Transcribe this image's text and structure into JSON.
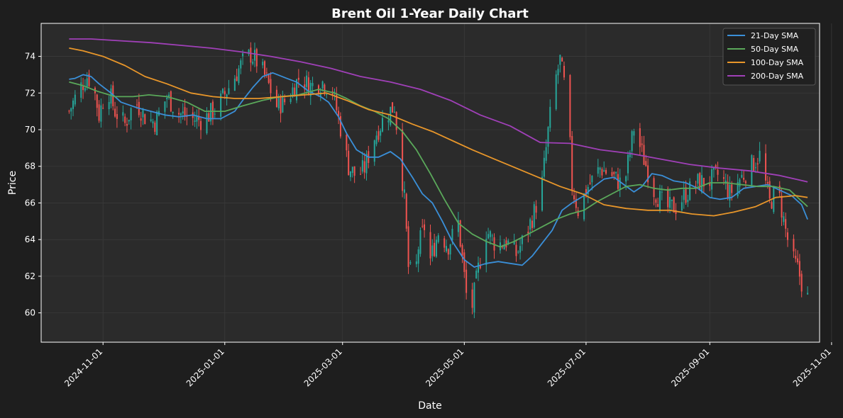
{
  "colors": {
    "figure_bg": "#1e1e1e",
    "axes_bg": "#2b2b2b",
    "grid": "#3a3a3a",
    "up": "#26a69a",
    "down": "#ef5350",
    "sma21": "#3a8fd8",
    "sma50": "#5aa85a",
    "sma100": "#e8962a",
    "sma200": "#a040b8"
  },
  "chart_data": {
    "type": "line",
    "title": "Brent Oil 1-Year Daily Chart",
    "xlabel": "Date",
    "ylabel": "Price",
    "xlim": [
      "2024-10-01",
      "2025-10-26"
    ],
    "ylim": [
      58.4,
      75.8
    ],
    "grid": true,
    "legend_position": "top-right",
    "x_ticks": [
      "2024-11-01",
      "2025-01-01",
      "2025-03-01",
      "2025-05-01",
      "2025-07-01",
      "2025-09-01",
      "2025-11-01"
    ],
    "y_ticks": [
      60,
      62,
      64,
      66,
      68,
      70,
      72,
      74
    ],
    "close_points": {
      "x": [
        "2024-10-15",
        "2024-10-20",
        "2024-10-24",
        "2024-10-27",
        "2024-10-30",
        "2024-11-03",
        "2024-11-07",
        "2024-11-12",
        "2024-11-17",
        "2024-11-22",
        "2024-11-27",
        "2024-12-03",
        "2024-12-09",
        "2024-12-15",
        "2024-12-21",
        "2024-12-28",
        "2025-01-04",
        "2025-01-10",
        "2025-01-14",
        "2025-01-18",
        "2025-01-22",
        "2025-01-27",
        "2025-02-01",
        "2025-02-07",
        "2025-02-13",
        "2025-02-19",
        "2025-02-24",
        "2025-03-01",
        "2025-03-04",
        "2025-03-08",
        "2025-03-12",
        "2025-03-17",
        "2025-03-22",
        "2025-03-27",
        "2025-04-01",
        "2025-04-03",
        "2025-04-06",
        "2025-04-08",
        "2025-04-11",
        "2025-04-14",
        "2025-04-18",
        "2025-04-23",
        "2025-04-28",
        "2025-05-02",
        "2025-05-05",
        "2025-05-08",
        "2025-05-12",
        "2025-05-17",
        "2025-05-22",
        "2025-05-27",
        "2025-06-01",
        "2025-06-05",
        "2025-06-09",
        "2025-06-12",
        "2025-06-15",
        "2025-06-18",
        "2025-06-22",
        "2025-06-24",
        "2025-06-27",
        "2025-07-02",
        "2025-07-08",
        "2025-07-14",
        "2025-07-20",
        "2025-07-25",
        "2025-07-30",
        "2025-08-04",
        "2025-08-10",
        "2025-08-15",
        "2025-08-20",
        "2025-08-26",
        "2025-09-01",
        "2025-09-06",
        "2025-09-11",
        "2025-09-16",
        "2025-09-21",
        "2025-09-26",
        "2025-10-01",
        "2025-10-05",
        "2025-10-09",
        "2025-10-12",
        "2025-10-15",
        "2025-10-18",
        "2025-10-20"
      ],
      "y": [
        71.0,
        72.2,
        72.9,
        72.5,
        70.8,
        72.4,
        71.0,
        70.3,
        71.6,
        70.7,
        70.4,
        71.8,
        70.9,
        70.6,
        70.5,
        71.2,
        72.5,
        73.7,
        74.1,
        73.6,
        72.7,
        71.3,
        71.6,
        72.8,
        72.4,
        72.6,
        72.1,
        69.6,
        68.0,
        67.4,
        67.9,
        69.6,
        70.7,
        71.3,
        66.2,
        62.5,
        61.6,
        63.6,
        64.7,
        62.9,
        64.4,
        63.7,
        64.9,
        61.0,
        60.4,
        62.4,
        64.5,
        63.7,
        63.9,
        63.2,
        64.3,
        65.5,
        67.1,
        69.9,
        72.4,
        73.8,
        71.2,
        66.9,
        65.6,
        66.9,
        67.9,
        67.5,
        66.9,
        70.1,
        68.4,
        66.7,
        65.7,
        65.8,
        66.5,
        67.1,
        67.2,
        67.6,
        66.5,
        67.3,
        67.9,
        68.6,
        66.0,
        66.8,
        64.5,
        63.0,
        62.4,
        61.3,
        60.8
      ]
    },
    "series": [
      {
        "name": "21-Day SMA",
        "x": [
          "2024-10-15",
          "2024-10-18",
          "2024-10-22",
          "2024-10-26",
          "2024-10-30",
          "2024-11-05",
          "2024-11-10",
          "2024-11-18",
          "2024-11-25",
          "2024-12-02",
          "2024-12-09",
          "2024-12-16",
          "2024-12-23",
          "2024-12-30",
          "2025-01-06",
          "2025-01-10",
          "2025-01-15",
          "2025-01-20",
          "2025-01-25",
          "2025-02-01",
          "2025-02-06",
          "2025-02-12",
          "2025-02-18",
          "2025-02-22",
          "2025-02-27",
          "2025-03-03",
          "2025-03-08",
          "2025-03-14",
          "2025-03-19",
          "2025-03-25",
          "2025-03-30",
          "2025-04-05",
          "2025-04-10",
          "2025-04-15",
          "2025-04-20",
          "2025-04-25",
          "2025-05-01",
          "2025-05-06",
          "2025-05-12",
          "2025-05-18",
          "2025-05-24",
          "2025-05-30",
          "2025-06-04",
          "2025-06-09",
          "2025-06-14",
          "2025-06-19",
          "2025-06-24",
          "2025-06-30",
          "2025-07-05",
          "2025-07-10",
          "2025-07-15",
          "2025-07-20",
          "2025-07-25",
          "2025-07-29",
          "2025-08-03",
          "2025-08-08",
          "2025-08-14",
          "2025-08-20",
          "2025-08-26",
          "2025-09-01",
          "2025-09-06",
          "2025-09-12",
          "2025-09-18",
          "2025-09-24",
          "2025-09-30",
          "2025-10-06",
          "2025-10-12",
          "2025-10-17",
          "2025-10-20"
        ],
        "values": [
          72.75,
          72.8,
          73.0,
          72.9,
          72.5,
          72.0,
          71.5,
          71.2,
          71.0,
          70.8,
          70.7,
          70.8,
          70.6,
          70.6,
          71.0,
          71.6,
          72.3,
          72.9,
          73.1,
          72.8,
          72.6,
          72.1,
          71.8,
          71.5,
          70.7,
          69.8,
          68.9,
          68.5,
          68.5,
          68.8,
          68.4,
          67.4,
          66.5,
          66.0,
          65.0,
          63.9,
          62.9,
          62.5,
          62.7,
          62.8,
          62.7,
          62.6,
          63.1,
          63.8,
          64.5,
          65.6,
          66.0,
          66.4,
          66.9,
          67.3,
          67.4,
          67.0,
          66.6,
          66.9,
          67.6,
          67.5,
          67.2,
          67.1,
          66.8,
          66.3,
          66.2,
          66.3,
          66.8,
          66.9,
          67.0,
          66.7,
          66.4,
          65.9,
          65.1
        ]
      },
      {
        "name": "50-Day SMA",
        "x": [
          "2024-10-15",
          "2024-10-22",
          "2024-10-29",
          "2024-11-07",
          "2024-11-16",
          "2024-11-24",
          "2024-12-03",
          "2024-12-13",
          "2024-12-22",
          "2025-01-01",
          "2025-01-10",
          "2025-01-20",
          "2025-01-29",
          "2025-02-07",
          "2025-02-17",
          "2025-02-25",
          "2025-03-03",
          "2025-03-10",
          "2025-03-17",
          "2025-03-24",
          "2025-03-31",
          "2025-04-07",
          "2025-04-14",
          "2025-04-21",
          "2025-04-28",
          "2025-05-05",
          "2025-05-12",
          "2025-05-19",
          "2025-05-26",
          "2025-06-02",
          "2025-06-09",
          "2025-06-16",
          "2025-06-23",
          "2025-06-30",
          "2025-07-07",
          "2025-07-14",
          "2025-07-21",
          "2025-07-28",
          "2025-08-04",
          "2025-08-11",
          "2025-08-18",
          "2025-08-25",
          "2025-09-01",
          "2025-09-09",
          "2025-09-17",
          "2025-09-25",
          "2025-10-03",
          "2025-10-11",
          "2025-10-17",
          "2025-10-20"
        ],
        "values": [
          72.6,
          72.4,
          72.1,
          71.8,
          71.8,
          71.9,
          71.8,
          71.5,
          71.0,
          71.0,
          71.3,
          71.6,
          71.8,
          71.9,
          72.2,
          72.0,
          71.7,
          71.3,
          71.0,
          70.6,
          69.9,
          68.9,
          67.6,
          66.2,
          64.9,
          64.3,
          63.9,
          63.6,
          63.9,
          64.3,
          64.7,
          65.1,
          65.4,
          65.6,
          66.1,
          66.5,
          66.9,
          67.0,
          66.8,
          66.7,
          66.8,
          66.8,
          67.1,
          67.1,
          67.0,
          66.9,
          66.9,
          66.7,
          66.1,
          65.8
        ]
      },
      {
        "name": "100-Day SMA",
        "x": [
          "2024-10-15",
          "2024-10-22",
          "2024-11-01",
          "2024-11-12",
          "2024-11-22",
          "2024-12-03",
          "2024-12-15",
          "2024-12-26",
          "2025-01-06",
          "2025-01-18",
          "2025-01-30",
          "2025-02-10",
          "2025-02-21",
          "2025-03-03",
          "2025-03-14",
          "2025-03-25",
          "2025-04-05",
          "2025-04-15",
          "2025-04-25",
          "2025-05-05",
          "2025-05-16",
          "2025-05-27",
          "2025-06-07",
          "2025-06-18",
          "2025-06-29",
          "2025-07-10",
          "2025-07-21",
          "2025-08-01",
          "2025-08-12",
          "2025-08-23",
          "2025-09-03",
          "2025-09-13",
          "2025-09-24",
          "2025-10-04",
          "2025-10-14",
          "2025-10-20"
        ],
        "values": [
          74.45,
          74.3,
          74.0,
          73.5,
          72.9,
          72.5,
          72.0,
          71.8,
          71.7,
          71.7,
          71.8,
          71.9,
          72.0,
          71.6,
          71.1,
          70.8,
          70.3,
          69.9,
          69.4,
          68.9,
          68.4,
          67.9,
          67.4,
          66.9,
          66.5,
          65.9,
          65.7,
          65.6,
          65.6,
          65.4,
          65.3,
          65.5,
          65.8,
          66.3,
          66.4,
          66.3
        ]
      },
      {
        "name": "200-Day SMA",
        "x": [
          "2024-10-15",
          "2024-10-26",
          "2024-11-10",
          "2024-11-25",
          "2024-12-10",
          "2024-12-25",
          "2025-01-09",
          "2025-01-24",
          "2025-02-08",
          "2025-02-23",
          "2025-03-10",
          "2025-03-25",
          "2025-04-09",
          "2025-04-24",
          "2025-05-09",
          "2025-05-24",
          "2025-06-08",
          "2025-06-23",
          "2025-07-08",
          "2025-07-23",
          "2025-08-07",
          "2025-08-22",
          "2025-09-06",
          "2025-09-21",
          "2025-10-06",
          "2025-10-20"
        ],
        "values": [
          74.95,
          74.95,
          74.85,
          74.75,
          74.6,
          74.45,
          74.25,
          74.0,
          73.7,
          73.35,
          72.9,
          72.6,
          72.2,
          71.6,
          70.8,
          70.2,
          69.3,
          69.25,
          68.9,
          68.7,
          68.4,
          68.1,
          67.9,
          67.75,
          67.5,
          67.15
        ]
      }
    ]
  }
}
